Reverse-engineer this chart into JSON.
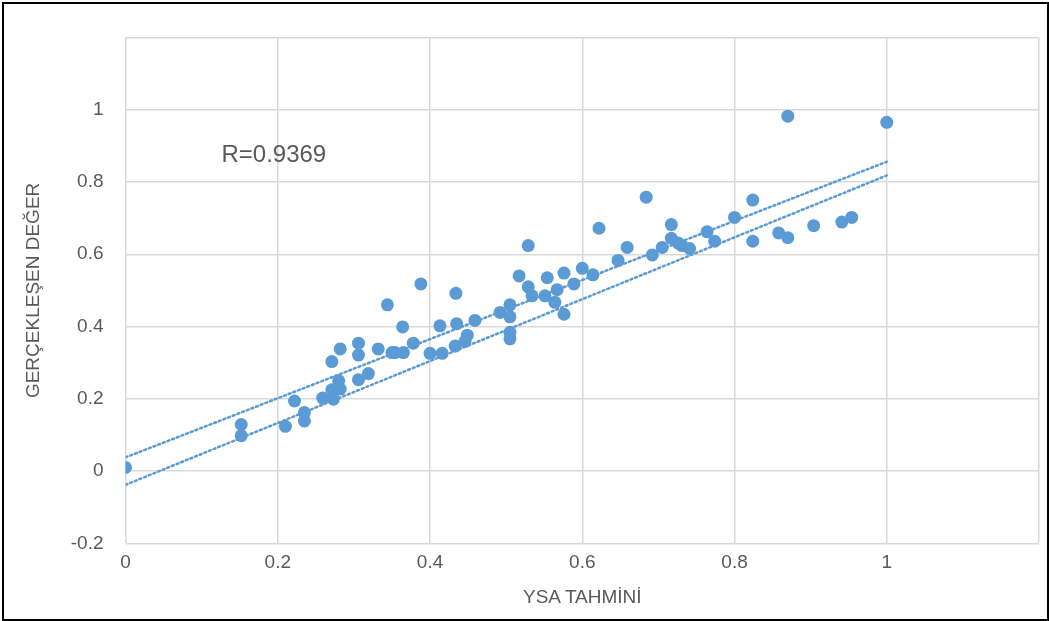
{
  "chart_data": {
    "type": "scatter",
    "xlabel": "YSA TAHMİNİ",
    "ylabel": "GERÇEKLEŞEN DEĞER",
    "annotations": [
      "R=0.9369"
    ],
    "xlim": [
      0,
      1.2
    ],
    "xticks": [
      0,
      0.2,
      0.4,
      0.6,
      0.8,
      1,
      {
        "value": 1.2,
        "label": null
      }
    ],
    "ylim": [
      -0.2,
      1.2
    ],
    "yticks": [
      -0.2,
      0,
      0.2,
      0.4,
      0.6,
      0.8,
      1,
      {
        "value": 1.2,
        "label": null
      }
    ],
    "grid": true,
    "legend": false,
    "marker": "circle",
    "series": [
      {
        "color": "#5b9bd5",
        "x": [
          0,
          0.152,
          0.152,
          0.21,
          0.235,
          0.235,
          0.222,
          0.259,
          0.273,
          0.28,
          0.271,
          0.282,
          0.271,
          0.282,
          0.306,
          0.306,
          0.306,
          0.319,
          0.344,
          0.388,
          0.332,
          0.35,
          0.365,
          0.364,
          0.378,
          0.354,
          0.4,
          0.416,
          0.413,
          0.434,
          0.435,
          0.446,
          0.433,
          0.449,
          0.459,
          0.492,
          0.505,
          0.505,
          0.505,
          0.505,
          0.517,
          0.529,
          0.529,
          0.534,
          0.554,
          0.551,
          0.564,
          0.567,
          0.576,
          0.576,
          0.589,
          0.6,
          0.614,
          0.622,
          0.647,
          0.659,
          0.684,
          0.692,
          0.705,
          0.717,
          0.717,
          0.731,
          0.741,
          0.726,
          0.764,
          0.774,
          0.8,
          0.824,
          0.824,
          0.858,
          0.87,
          0.87,
          0.904,
          0.941,
          0.954,
          1
        ],
        "values": [
          0.01,
          0.129,
          0.098,
          0.124,
          0.139,
          0.162,
          0.194,
          0.202,
          0.199,
          0.25,
          0.225,
          0.227,
          0.303,
          0.338,
          0.354,
          0.321,
          0.253,
          0.27,
          0.46,
          0.518,
          0.338,
          0.328,
          0.328,
          0.399,
          0.354,
          0.328,
          0.326,
          0.326,
          0.402,
          0.492,
          0.408,
          0.359,
          0.346,
          0.376,
          0.417,
          0.439,
          0.46,
          0.427,
          0.384,
          0.366,
          0.54,
          0.624,
          0.51,
          0.485,
          0.535,
          0.485,
          0.467,
          0.502,
          0.548,
          0.434,
          0.518,
          0.561,
          0.543,
          0.672,
          0.583,
          0.619,
          0.758,
          0.598,
          0.619,
          0.682,
          0.644,
          0.624,
          0.616,
          0.631,
          0.662,
          0.636,
          0.702,
          0.75,
          0.636,
          0.659,
          0.646,
          0.982,
          0.679,
          0.689,
          0.702,
          0.965
        ]
      },
      {
        "type": "line",
        "color": "#5b9bd5",
        "line_style": "dotted",
        "marker": "none",
        "x": [
          0,
          1
        ],
        "values": [
          0.038,
          0.856
        ]
      },
      {
        "type": "line",
        "color": "#5b9bd5",
        "line_style": "dotted",
        "marker": "none",
        "x": [
          0,
          1
        ],
        "values": [
          -0.038,
          0.818
        ]
      }
    ]
  }
}
